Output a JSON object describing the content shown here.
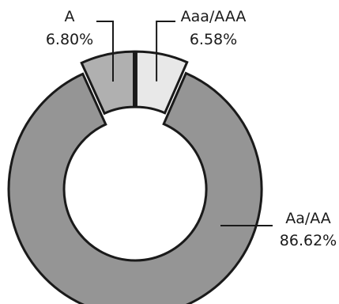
{
  "chart_data": {
    "type": "pie",
    "donut": true,
    "title": "",
    "labels": [
      "Aaa/AAA",
      "Aa/AA",
      "A"
    ],
    "values": [
      6.58,
      86.62,
      6.8
    ],
    "value_labels": [
      "6.58%",
      "86.62%",
      "6.80%"
    ],
    "colors": [
      "#e8e8e8",
      "#959595",
      "#b0b0b0"
    ],
    "edge_color": "#1a1a1a",
    "legend": "none"
  }
}
